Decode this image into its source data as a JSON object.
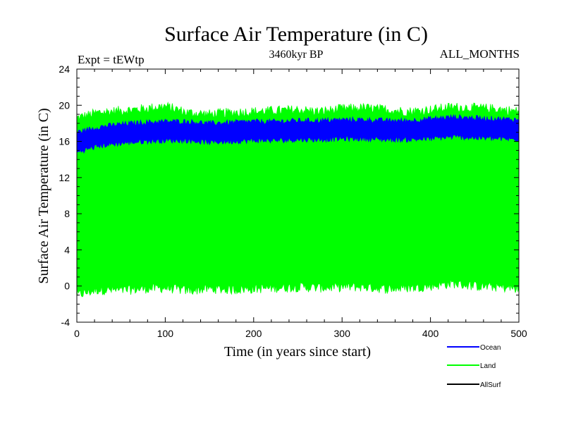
{
  "chart_data": {
    "type": "area",
    "title": "Surface Air Temperature (in C)",
    "subtitle": "3460kyr BP",
    "left_note": "Expt = tEWtp",
    "right_note": "ALL_MONTHS",
    "xlabel": "Time (in years since start)",
    "ylabel": "Surface Air Temperature (in C)",
    "xlim": [
      0,
      500
    ],
    "ylim": [
      -4,
      24
    ],
    "xticks": [
      0,
      100,
      200,
      300,
      400,
      500
    ],
    "yticks": [
      -4,
      0,
      4,
      8,
      12,
      16,
      20,
      24
    ],
    "grid": false,
    "legend_position": "bottom-right",
    "series": [
      {
        "name": "Land",
        "color": "#00ff00",
        "style": "band",
        "x": [
          0,
          25,
          50,
          75,
          100,
          125,
          150,
          175,
          200,
          225,
          250,
          275,
          300,
          325,
          350,
          375,
          400,
          425,
          450,
          475,
          500
        ],
        "upper": [
          18.6,
          19.2,
          19.4,
          19.6,
          19.9,
          19.2,
          19.0,
          19.2,
          19.3,
          19.4,
          19.5,
          19.3,
          19.6,
          19.7,
          19.5,
          19.3,
          19.5,
          19.8,
          19.7,
          19.6,
          19.3
        ],
        "lower": [
          -1.0,
          -0.4,
          -0.5,
          -0.3,
          -0.2,
          -0.5,
          -0.3,
          -0.4,
          -0.3,
          -0.2,
          -0.1,
          -0.2,
          -0.1,
          -0.1,
          -0.3,
          -0.2,
          0.0,
          0.3,
          0.0,
          -0.1,
          -0.3
        ]
      },
      {
        "name": "Ocean",
        "color": "#0000ff",
        "style": "band",
        "x": [
          0,
          25,
          50,
          75,
          100,
          125,
          150,
          175,
          200,
          225,
          250,
          275,
          300,
          325,
          350,
          375,
          400,
          425,
          450,
          475,
          500
        ],
        "upper": [
          17.0,
          17.6,
          17.9,
          18.1,
          18.2,
          18.2,
          18.0,
          18.1,
          18.2,
          18.2,
          18.3,
          18.3,
          18.4,
          18.4,
          18.3,
          18.3,
          18.5,
          18.7,
          18.6,
          18.5,
          18.4
        ],
        "lower": [
          14.8,
          15.5,
          15.8,
          16.0,
          16.1,
          16.1,
          15.9,
          16.0,
          16.1,
          16.1,
          16.2,
          16.2,
          16.3,
          16.3,
          16.2,
          16.2,
          16.3,
          16.5,
          16.4,
          16.3,
          16.2
        ]
      },
      {
        "name": "AllSurf",
        "color": "#000000",
        "style": "line",
        "x": [],
        "values": []
      }
    ],
    "legend": [
      {
        "name": "Ocean",
        "color": "#0000ff"
      },
      {
        "name": "Land",
        "color": "#00ff00"
      },
      {
        "name": "AllSurf",
        "color": "#000000"
      }
    ]
  }
}
